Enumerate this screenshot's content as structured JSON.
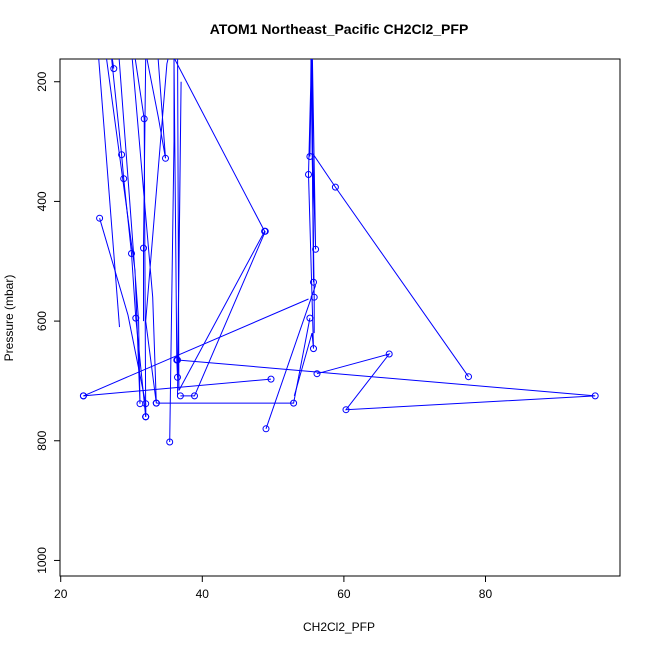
{
  "chart_data": {
    "type": "line",
    "title": "ATOM1 Northeast_Pacific CH2Cl2_PFP",
    "xlabel": "CH2Cl2_PFP",
    "ylabel": "Pressure (mbar)",
    "xlim": [
      19.9,
      99.0
    ],
    "ylim": [
      1026,
      162
    ],
    "y_reversed": true,
    "grid": false,
    "x_ticks": [
      "20",
      "40",
      "60",
      "80"
    ],
    "y_ticks": [
      "200",
      "400",
      "600",
      "800",
      "1000"
    ],
    "colors": {
      "series": "#0000ff",
      "axes": "#000000"
    },
    "series": [
      {
        "x": [
          25.1,
          28.3
        ],
        "y": [
          120,
          610
        ],
        "markers": [
          false,
          false
        ]
      },
      {
        "x": [
          27.5,
          27.0,
          28.6,
          28.9,
          30.0,
          30.6,
          32.0,
          32.0,
          31.8,
          30.0,
          29.0,
          26.0
        ],
        "y": [
          178,
          140,
          322,
          362,
          487,
          595,
          760,
          760,
          262,
          120,
          120,
          120
        ],
        "markers": [
          true,
          false,
          true,
          true,
          true,
          true,
          true,
          true,
          true,
          false,
          false,
          false
        ]
      },
      {
        "x": [
          26.0,
          30.5,
          31.2,
          31.0,
          28.0
        ],
        "y": [
          120,
          515,
          738,
          600,
          120
        ],
        "markers": [
          false,
          false,
          true,
          false,
          false
        ]
      },
      {
        "x": [
          29.8,
          33.0,
          33.5,
          32.0,
          35.0,
          36.0,
          32.0,
          31.7,
          31.7
        ],
        "y": [
          120,
          560,
          737,
          600,
          170,
          120,
          160,
          478,
          600
        ],
        "markers": [
          false,
          false,
          true,
          false,
          false,
          false,
          false,
          true,
          false
        ]
      },
      {
        "x": [
          31.5,
          33.8,
          34.8,
          33.5
        ],
        "y": [
          120,
          260,
          328,
          120
        ],
        "markers": [
          false,
          false,
          true,
          false
        ]
      },
      {
        "x": [
          36.5,
          37.0,
          36.5,
          36.4,
          36.0,
          36.5,
          36.7,
          48.8,
          36.0,
          36.0,
          35.4
        ],
        "y": [
          727,
          200,
          694,
          665,
          160,
          120,
          716,
          450,
          160,
          300,
          802
        ],
        "markers": [
          false,
          false,
          true,
          true,
          false,
          false,
          false,
          true,
          false,
          false,
          true
        ]
      },
      {
        "x": [
          25.5,
          29.5,
          32.0,
          32.0
        ],
        "y": [
          428,
          590,
          738,
          760
        ],
        "markers": [
          true,
          false,
          true,
          true
        ]
      },
      {
        "x": [
          23.2,
          55.0
        ],
        "y": [
          725,
          563
        ],
        "markers": [
          true,
          false
        ]
      },
      {
        "x": [
          23.2,
          49.7
        ],
        "y": [
          725,
          697
        ],
        "markers": [
          true,
          true
        ]
      },
      {
        "x": [
          36.9,
          38.9,
          48.9
        ],
        "y": [
          725,
          725,
          450
        ],
        "markers": [
          true,
          true,
          true
        ]
      },
      {
        "x": [
          33.5,
          52.9,
          55.2
        ],
        "y": [
          737,
          737,
          595
        ],
        "markers": [
          true,
          true,
          true
        ]
      },
      {
        "x": [
          49.0,
          56.0
        ],
        "y": [
          780,
          540
        ],
        "markers": [
          true,
          false
        ]
      },
      {
        "x": [
          36.5,
          95.5,
          60.3,
          66.4,
          56.2
        ],
        "y": [
          665,
          725,
          748,
          655,
          688
        ],
        "markers": [
          true,
          true,
          true,
          true,
          true
        ]
      },
      {
        "x": [
          53.0,
          55.5,
          55.7,
          55.0,
          55.5,
          55.2,
          55.4,
          55.7,
          55.5,
          56.0,
          55.6,
          58.8,
          77.6
        ],
        "y": [
          725,
          620,
          646,
          355,
          120,
          325,
          120,
          535,
          120,
          480,
          320,
          376,
          693
        ],
        "markers": [
          false,
          false,
          true,
          true,
          false,
          true,
          false,
          true,
          false,
          true,
          false,
          true,
          true
        ]
      },
      {
        "x": [
          55.3,
          55.8,
          55.8
        ],
        "y": [
          120,
          560,
          620
        ],
        "markers": [
          false,
          true,
          false
        ]
      }
    ]
  }
}
